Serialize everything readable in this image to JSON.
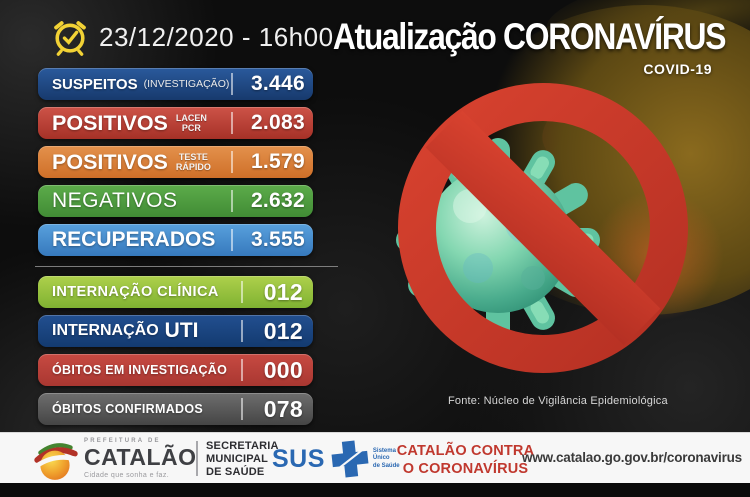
{
  "header": {
    "datetime": "23/12/2020 - 16h00",
    "title": "Atualização CORONAVÍRUS",
    "subtitle": "COVID-19",
    "clock_icon": "alarm-clock-check",
    "clock_color": "#f2d235"
  },
  "stats": [
    {
      "id": "suspeitos",
      "label": "SUSPEITOS",
      "sublabel_inline": "(INVESTIGAÇÃO)",
      "value": "3.446",
      "color_top": "#2a5a9c",
      "color_bottom": "#173a6d",
      "group": 1
    },
    {
      "id": "positivos-pcr",
      "label": "POSITIVOS",
      "sublabel_stack": "LACEN\nPCR",
      "value": "2.083",
      "color_top": "#cd5348",
      "color_bottom": "#a63127",
      "group": 1
    },
    {
      "id": "positivos-teste",
      "label": "POSITIVOS",
      "sublabel_stack": "TESTE\nRÁPIDO",
      "value": "1.579",
      "color_top": "#e3914c",
      "color_bottom": "#cf6f28",
      "group": 1
    },
    {
      "id": "negativos",
      "label": "NEGATIVOS",
      "value": "2.632",
      "color_top": "#5cab4a",
      "color_bottom": "#418c35",
      "group": 1
    },
    {
      "id": "recuperados",
      "label": "RECUPERADOS",
      "value": "3.555",
      "color_top": "#58a0dd",
      "color_bottom": "#3679bd",
      "group": 1
    },
    {
      "id": "internacao-clinica",
      "label": "INTERNAÇÃO CLÍNICA",
      "value": "012",
      "color_top": "#aed04b",
      "color_bottom": "#7fb232",
      "group": 2
    },
    {
      "id": "internacao-uti",
      "label": "INTERNAÇÃO",
      "label_big": "UTI",
      "value": "012",
      "color_top": "#224f90",
      "color_bottom": "#133a70",
      "group": 2
    },
    {
      "id": "obitos-investigacao",
      "label": "ÓBITOS EM INVESTIGAÇÃO",
      "value": "000",
      "color_top": "#c74a42",
      "color_bottom": "#a93731",
      "group": 2
    },
    {
      "id": "obitos-confirmados",
      "label": "ÓBITOS CONFIRMADOS",
      "value": "078",
      "color_top": "#6e6e6e",
      "color_bottom": "#454545",
      "group": 2
    }
  ],
  "graphic": {
    "name": "no-coronavirus-prohibition-sign",
    "ring_color": "#cc3a2a",
    "virus_color": "#63c7a4"
  },
  "fonte": "Fonte: Núcleo de Vigilância Epidemiológica",
  "footer": {
    "prefeitura_small": "PREFEITURA DE",
    "prefeitura_name": "CATALÃO",
    "prefeitura_tagline": "Cidade que sonha e faz.",
    "secretaria": "SECRETARIA\nMUNICIPAL\nDE SAÚDE",
    "sus_label": "SUS",
    "sus_small": "Sistema\nÚnico\nde Saúde",
    "sus_color": "#2a68b2",
    "slogan": "CATALÃO CONTRA\nO CORONAVÍRUS",
    "slogan_color": "#c0382e",
    "url": "www.catalao.go.gov.br/coronavirus"
  }
}
